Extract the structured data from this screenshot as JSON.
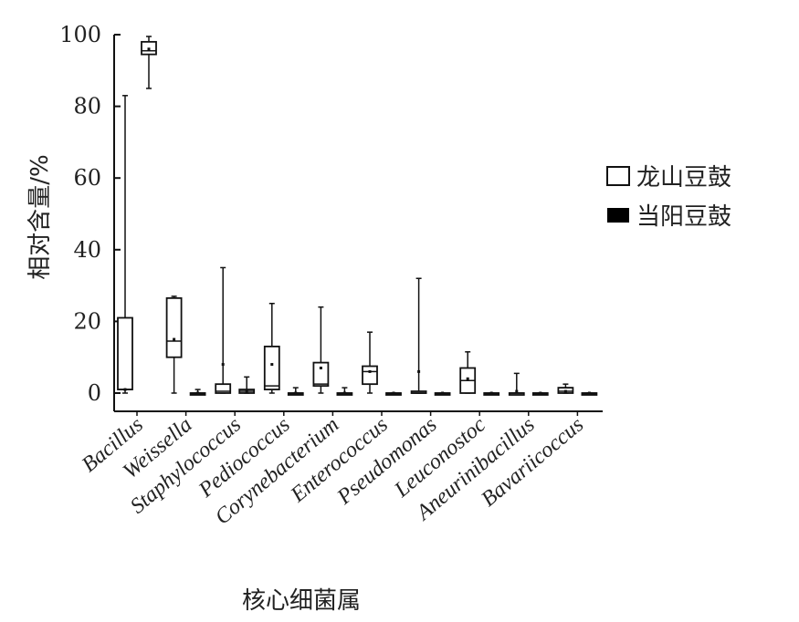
{
  "chart_data": {
    "type": "box",
    "xlabel": "核心细菌属",
    "ylabel": "相对含量/%",
    "ylim": [
      0,
      100
    ],
    "yticks": [
      0,
      20,
      40,
      60,
      80,
      100
    ],
    "categories": [
      "Bacillus",
      "Weissella",
      "Staphylococcus",
      "Pediococcus",
      "Corynebacterium",
      "Enterococcus",
      "Pseudomonas",
      "Leuconostoc",
      "Aneurinibacillus",
      "Bavariicoccus"
    ],
    "legend_position": "right",
    "series": [
      {
        "name": "龙山豆鼓",
        "fill": "#ffffff",
        "boxes": [
          {
            "min": 0,
            "q1": 1,
            "median": 1,
            "q3": 21,
            "max": 83,
            "mean": 1
          },
          {
            "min": 0,
            "q1": 10,
            "median": 14.5,
            "q3": 26.5,
            "max": 27,
            "mean": 15
          },
          {
            "min": 0,
            "q1": 0,
            "median": 0.5,
            "q3": 2.5,
            "max": 35,
            "mean": 8
          },
          {
            "min": 0,
            "q1": 1,
            "median": 2,
            "q3": 13,
            "max": 25,
            "mean": 8
          },
          {
            "min": 0,
            "q1": 2,
            "median": 2.5,
            "q3": 8.5,
            "max": 24,
            "mean": 7
          },
          {
            "min": 0,
            "q1": 2.5,
            "median": 6,
            "q3": 7.5,
            "max": 17,
            "mean": 6
          },
          {
            "min": 0,
            "q1": 0,
            "median": 0,
            "q3": 0.5,
            "max": 32,
            "mean": 6
          },
          {
            "min": 0,
            "q1": 0,
            "median": 3.5,
            "q3": 7,
            "max": 11.5,
            "mean": 4
          },
          {
            "min": 0,
            "q1": 0,
            "median": 0,
            "q3": 0,
            "max": 5.5,
            "mean": 0.5
          },
          {
            "min": 0,
            "q1": 0,
            "median": 0.5,
            "q3": 1.5,
            "max": 2.5,
            "mean": 0.5
          }
        ]
      },
      {
        "name": "当阳豆鼓",
        "fill": "#000000",
        "boxes": [
          {
            "min": 85,
            "q1": 94.5,
            "median": 95.5,
            "q3": 98,
            "max": 99.5,
            "mean": 96
          },
          {
            "min": 0,
            "q1": 0,
            "median": 0,
            "q3": 0,
            "max": 1,
            "mean": 0
          },
          {
            "min": 0,
            "q1": 0,
            "median": 0.5,
            "q3": 1,
            "max": 4.5,
            "mean": 0.5
          },
          {
            "min": 0,
            "q1": 0,
            "median": 0,
            "q3": 0,
            "max": 1.5,
            "mean": 0
          },
          {
            "min": 0,
            "q1": 0,
            "median": 0,
            "q3": 0,
            "max": 1.5,
            "mean": 0
          },
          {
            "min": 0,
            "q1": 0,
            "median": 0,
            "q3": 0,
            "max": 0,
            "mean": 0
          },
          {
            "min": 0,
            "q1": 0,
            "median": 0,
            "q3": 0,
            "max": 0,
            "mean": 0
          },
          {
            "min": 0,
            "q1": 0,
            "median": 0,
            "q3": 0,
            "max": 0,
            "mean": 0
          },
          {
            "min": 0,
            "q1": 0,
            "median": 0,
            "q3": 0,
            "max": 0,
            "mean": 0
          },
          {
            "min": 0,
            "q1": 0,
            "median": 0,
            "q3": 0,
            "max": 0,
            "mean": 0
          }
        ]
      }
    ]
  }
}
